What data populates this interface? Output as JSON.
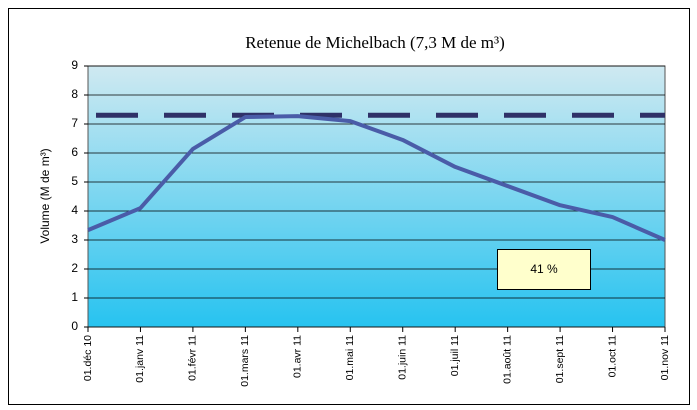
{
  "chart_data": {
    "type": "line",
    "title": "Retenue de Michelbach (7,3 M de m³)",
    "y_label": "Volume (M de m³)",
    "categories": [
      "01.déc 10",
      "01.janv 11",
      "01.févr 11",
      "01.mars 11",
      "01.avr 11",
      "01.mai 11",
      "01.juin 11",
      "01.juil 11",
      "01.août 11",
      "01.sept 11",
      "01.oct 11",
      "01.nov 11"
    ],
    "series": [
      {
        "color": "#4a5ca8",
        "values": [
          3.34,
          4.1,
          6.14,
          7.24,
          7.27,
          7.1,
          6.45,
          5.52,
          4.86,
          4.2,
          3.79,
          3.0
        ]
      }
    ],
    "reference_line": {
      "value": 7.3,
      "color": "#2f3168"
    },
    "annotation": "41 %",
    "ylim": [
      0,
      9
    ],
    "yticks": [
      0,
      1,
      2,
      3,
      4,
      5,
      6,
      7,
      8,
      9
    ],
    "grid": true
  }
}
